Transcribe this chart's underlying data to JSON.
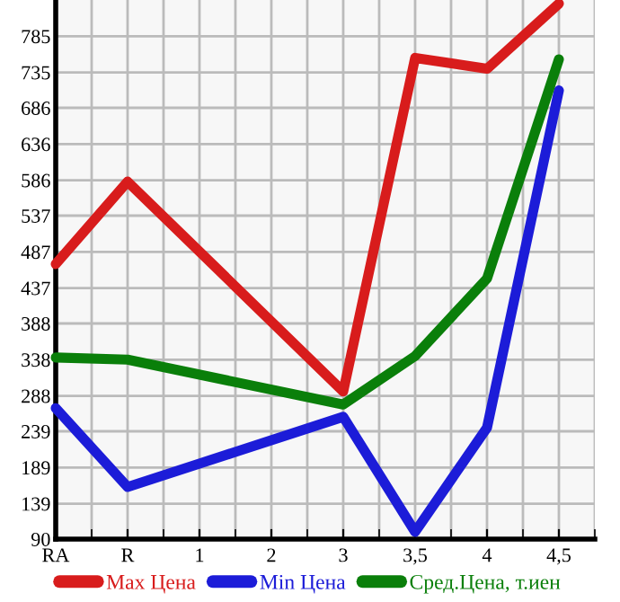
{
  "chart_data": {
    "type": "line",
    "categories": [
      "RA",
      "R",
      "1",
      "2",
      "3",
      "3,5",
      "4",
      "4,5"
    ],
    "series": [
      {
        "name": "Max Цена",
        "color": "#d81c1c",
        "values": [
          470,
          584,
          null,
          null,
          294,
          755,
          740,
          830
        ]
      },
      {
        "name": "Min Цена",
        "color": "#1c1cd8",
        "values": [
          271,
          162,
          null,
          null,
          259,
          100,
          244,
          710
        ]
      },
      {
        "name": "Сред.Цена, т.иен",
        "color": "#0a7f0a",
        "values": [
          341,
          338,
          null,
          null,
          276,
          343,
          450,
          753
        ]
      }
    ],
    "ylim": [
      90,
      835
    ],
    "yticks": [
      90,
      139,
      189,
      239,
      288,
      338,
      388,
      437,
      487,
      537,
      586,
      636,
      686,
      735,
      785
    ],
    "grid": true,
    "legend": "bottom",
    "marker": "none",
    "line_style": "solid"
  }
}
